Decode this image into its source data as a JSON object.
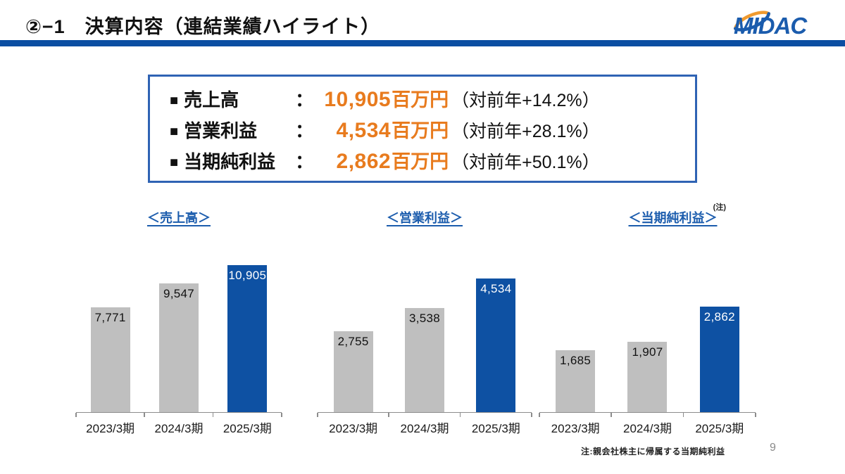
{
  "page": {
    "title": "②−1　決算内容（連結業績ハイライト）",
    "page_number": "9",
    "footnote": "注:親会社株主に帰属する当期純利益"
  },
  "logo": {
    "text": "MIDAC"
  },
  "colors": {
    "header_rule_blue": "#0b4ea2",
    "bar_blue": "#0e51a3",
    "bar_gray": "#bfbfbf",
    "accent_orange": "#e87b1e",
    "chart_title_blue": "#1b5cad",
    "box_border_blue": "#2f63b4"
  },
  "highlights": {
    "bullet": "■",
    "colon": "：",
    "items": [
      {
        "label": "売上高",
        "value": "10,905",
        "unit": "百万円",
        "yoy": "（対前年+14.2%）"
      },
      {
        "label": "営業利益",
        "value": "4,534",
        "unit": "百万円",
        "yoy": "（対前年+28.1%）"
      },
      {
        "label": "当期純利益",
        "value": "2,862",
        "unit": "百万円",
        "yoy": "（対前年+50.1%）"
      }
    ]
  },
  "chart_data": [
    {
      "type": "bar",
      "title": "＜売上高＞",
      "categories": [
        "2023/3期",
        "2024/3期",
        "2025/3期"
      ],
      "values": [
        7771,
        9547,
        10905
      ],
      "labels": [
        "7,771",
        "9,547",
        "10,905"
      ],
      "ylim": [
        0,
        12000
      ],
      "highlight_index": 2,
      "legend": "none",
      "grid": false
    },
    {
      "type": "bar",
      "title": "＜営業利益＞",
      "categories": [
        "2023/3期",
        "2024/3期",
        "2025/3期"
      ],
      "values": [
        2755,
        3538,
        4534
      ],
      "labels": [
        "2,755",
        "3,538",
        "4,534"
      ],
      "ylim": [
        0,
        5500
      ],
      "highlight_index": 2,
      "legend": "none",
      "grid": false
    },
    {
      "type": "bar",
      "title": "＜当期純利益＞",
      "note_mark": "(注)",
      "categories": [
        "2023/3期",
        "2024/3期",
        "2025/3期"
      ],
      "values": [
        1685,
        1907,
        2862
      ],
      "labels": [
        "1,685",
        "1,907",
        "2,862"
      ],
      "ylim": [
        0,
        4400
      ],
      "highlight_index": 2,
      "legend": "none",
      "grid": false
    }
  ]
}
